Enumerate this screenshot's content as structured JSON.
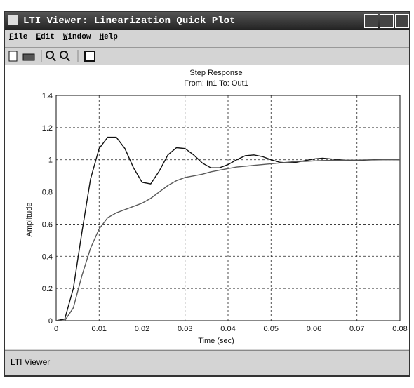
{
  "window": {
    "title": "LTI Viewer: Linearization Quick Plot",
    "menu": [
      "File",
      "Edit",
      "Window",
      "Help"
    ],
    "status": "LTI Viewer"
  },
  "chart_data": {
    "type": "line",
    "title": "Step Response",
    "subtitle": "From: In1  To: Out1",
    "x_label": "Time (sec)",
    "y_label": "Amplitude",
    "x": [
      0,
      0.002,
      0.004,
      0.006,
      0.008,
      0.01,
      0.012,
      0.014,
      0.016,
      0.018,
      0.02,
      0.022,
      0.024,
      0.026,
      0.028,
      0.03,
      0.032,
      0.034,
      0.036,
      0.038,
      0.04,
      0.042,
      0.044,
      0.046,
      0.048,
      0.05,
      0.052,
      0.054,
      0.056,
      0.058,
      0.06,
      0.062,
      0.064,
      0.066,
      0.068,
      0.07,
      0.072,
      0.074,
      0.076,
      0.078,
      0.08
    ],
    "series": [
      {
        "color": "#111111",
        "values": [
          0,
          0.01,
          0.2,
          0.55,
          0.88,
          1.07,
          1.14,
          1.14,
          1.07,
          0.95,
          0.86,
          0.85,
          0.93,
          1.03,
          1.075,
          1.07,
          1.03,
          0.98,
          0.95,
          0.95,
          0.97,
          1.0,
          1.025,
          1.03,
          1.02,
          1.0,
          0.985,
          0.98,
          0.985,
          0.995,
          1.005,
          1.01,
          1.005,
          1.0,
          0.995,
          0.995,
          0.998,
          1.0,
          1.002,
          1.001,
          1.0
        ]
      },
      {
        "color": "#5a5a5a",
        "values": [
          0,
          0.0,
          0.08,
          0.28,
          0.45,
          0.57,
          0.64,
          0.67,
          0.69,
          0.71,
          0.73,
          0.76,
          0.8,
          0.84,
          0.87,
          0.89,
          0.9,
          0.91,
          0.925,
          0.935,
          0.945,
          0.955,
          0.96,
          0.965,
          0.97,
          0.975,
          0.98,
          0.985,
          0.99,
          0.99,
          0.993,
          0.995,
          0.996,
          0.997,
          0.998,
          0.998,
          0.999,
          0.999,
          1.0,
          1.0,
          1.0
        ]
      }
    ],
    "xlim": [
      0,
      0.08
    ],
    "xticks": [
      0,
      0.01,
      0.02,
      0.03,
      0.04,
      0.05,
      0.06,
      0.07,
      0.08
    ],
    "ylim": [
      0,
      1.4
    ],
    "yticks": [
      0,
      0.2,
      0.4,
      0.6,
      0.8,
      1,
      1.2,
      1.4
    ],
    "grid": true
  }
}
